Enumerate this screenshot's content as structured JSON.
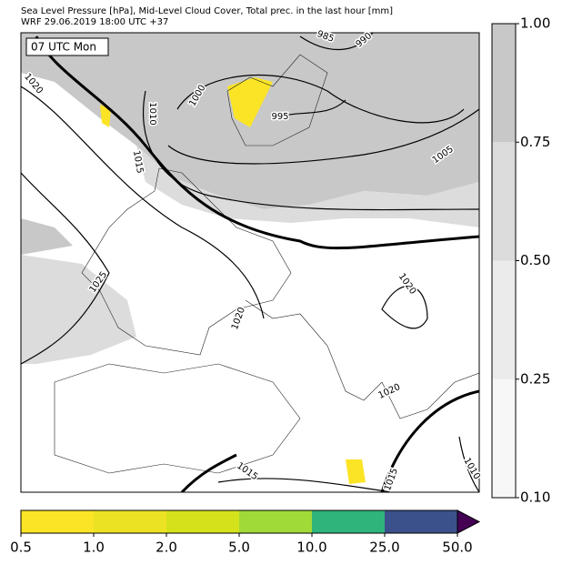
{
  "header": {
    "title": "Sea Level Pressure [hPa], Mid-Level Cloud Cover, Total prec. in the last hour [mm]",
    "subtitle": "WRF 29.06.2019 18:00 UTC +37"
  },
  "map": {
    "time_label": "07 UTC Mon",
    "isobar_labels": [
      "1020",
      "1000",
      "1010",
      "995",
      "985",
      "990",
      "1005",
      "1015",
      "1025",
      "1020",
      "1020",
      "1020",
      "1015",
      "1015",
      "1010"
    ]
  },
  "cloud_colorbar": {
    "ticks": [
      {
        "value": 0.1,
        "label": "0.10"
      },
      {
        "value": 0.25,
        "label": "0.25"
      },
      {
        "value": 0.5,
        "label": "0.50"
      },
      {
        "value": 0.75,
        "label": "0.75"
      },
      {
        "value": 1,
        "label": "1.00"
      }
    ],
    "colors": [
      "#f7f7f7",
      "#ebebeb",
      "#dcdcdc",
      "#c8c8c8"
    ]
  },
  "precip_colorbar": {
    "ticks": [
      {
        "value": 0.5,
        "label": "0.5"
      },
      {
        "value": 1,
        "label": "1.0"
      },
      {
        "value": 2,
        "label": "2.0"
      },
      {
        "value": 5,
        "label": "5.0"
      },
      {
        "value": 10,
        "label": "10.0"
      },
      {
        "value": 25,
        "label": "25.0"
      },
      {
        "value": 50,
        "label": "50.0"
      }
    ],
    "colors": [
      "#fbe426",
      "#ece224",
      "#d5e21b",
      "#a0da39",
      "#2fb47c",
      "#3b518b"
    ],
    "over_color": "#440154"
  }
}
